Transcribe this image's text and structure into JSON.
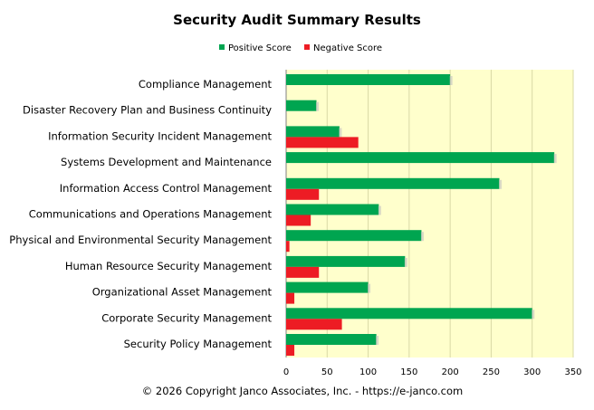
{
  "colors": {
    "positive": "#00a550",
    "negative": "#ed1c24",
    "plot_bg": "#ffffcc",
    "grid": "#d9d9a6",
    "axis": "#808080"
  },
  "footer": "© 2026 Copyright Janco Associates, Inc. - https://e-janco.com",
  "chart_data": {
    "type": "bar",
    "orientation": "horizontal",
    "title": "Security Audit Summary Results",
    "xlim": [
      0,
      350
    ],
    "xticks": [
      0,
      50,
      100,
      150,
      200,
      250,
      300,
      350
    ],
    "legend_position": "top",
    "grid": "vertical",
    "categories": [
      "Compliance Management",
      "Disaster Recovery Plan and Business Continuity",
      "Information Security Incident Management",
      "Systems Development and Maintenance",
      "Information Access Control Management",
      "Communications and Operations Management",
      "Physical and Environmental Security Management",
      "Human Resource Security Management",
      "Organizational Asset Management",
      "Corporate Security Management",
      "Security Policy Management"
    ],
    "series": [
      {
        "name": "Positive Score",
        "values": [
          200,
          37,
          65,
          327,
          260,
          113,
          165,
          145,
          100,
          300,
          110
        ]
      },
      {
        "name": "Negative Score",
        "values": [
          0,
          0,
          88,
          0,
          40,
          30,
          4,
          40,
          10,
          68,
          10
        ]
      }
    ]
  }
}
